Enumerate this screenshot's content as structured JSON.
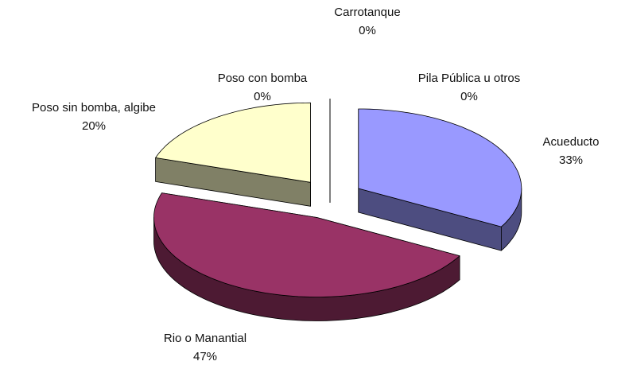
{
  "chart_data": {
    "type": "pie3d",
    "categories": [
      "Acueducto",
      "Rio o Manantial",
      "Poso sin bomba, algibe",
      "Poso con bomba",
      "Carrotanque",
      "Pila Pública u otros"
    ],
    "values": [
      33,
      47,
      20,
      0,
      0,
      0
    ],
    "value_labels": [
      "33%",
      "47%",
      "20%",
      "0%",
      "0%",
      "0%"
    ],
    "colors": [
      "#9999ff",
      "#993366",
      "#ffffcc",
      "#ccffff",
      "#660066",
      "#ff8080"
    ]
  }
}
